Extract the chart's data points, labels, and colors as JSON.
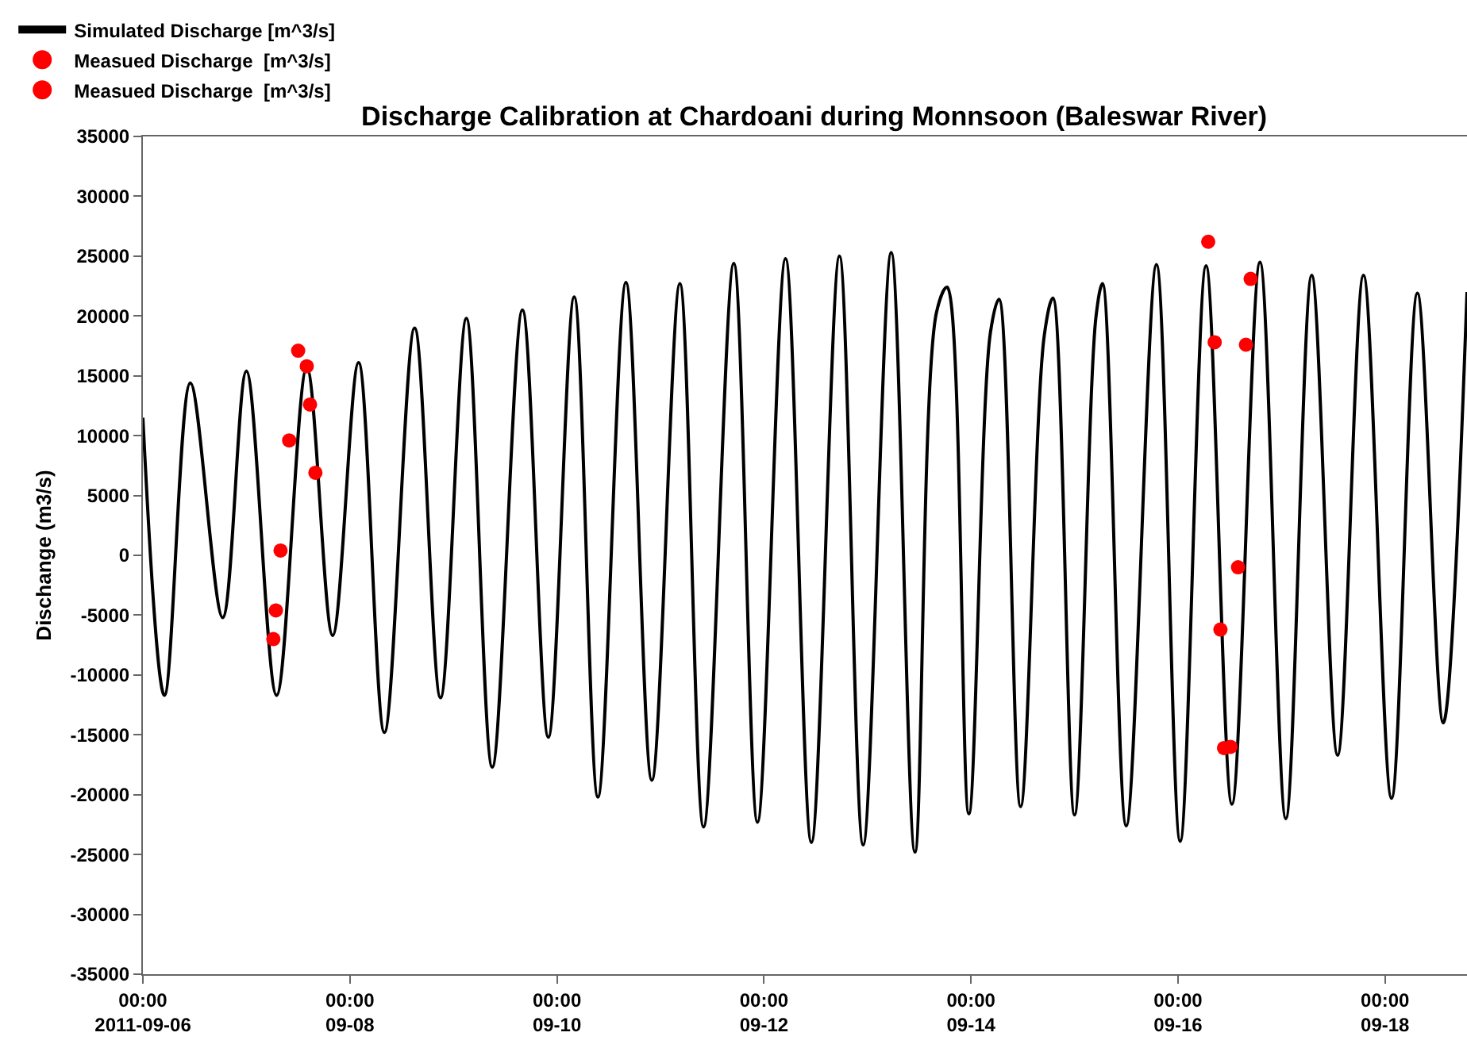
{
  "chart_data": {
    "type": "line",
    "title": "Discharge Calibration at Chardoani during Monnsoon (Baleswar River)",
    "ylabel": "Dischange (m3/s)",
    "xlim": [
      "2011-09-06T00:00",
      "2011-09-18T19:00"
    ],
    "xticks": [
      {
        "value": "2011-09-06T00:00",
        "label": "00:00\n2011-09-06"
      },
      {
        "value": "2011-09-08T00:00",
        "label": "00:00\n09-08"
      },
      {
        "value": "2011-09-10T00:00",
        "label": "00:00\n09-10"
      },
      {
        "value": "2011-09-12T00:00",
        "label": "00:00\n09-12"
      },
      {
        "value": "2011-09-14T00:00",
        "label": "00:00\n09-14"
      },
      {
        "value": "2011-09-16T00:00",
        "label": "00:00\n09-16"
      },
      {
        "value": "2011-09-18T00:00",
        "label": "00:00\n09-18"
      }
    ],
    "ylim": [
      -35000,
      35000
    ],
    "yticks": [
      -35000,
      -30000,
      -25000,
      -20000,
      -15000,
      -10000,
      -5000,
      0,
      5000,
      10000,
      15000,
      20000,
      25000,
      30000,
      35000
    ],
    "legend": "top left",
    "series": [
      {
        "name": "Simulated Discharge [m^3/s]",
        "color": "#000000",
        "marker": "none",
        "x": [
          "2011-09-06T00:00",
          "2011-09-06T05:00",
          "2011-09-06T11:00",
          "2011-09-06T18:30",
          "2011-09-07T00:00",
          "2011-09-07T07:00",
          "2011-09-07T14:00",
          "2011-09-07T20:00",
          "2011-09-08T02:00",
          "2011-09-08T08:00",
          "2011-09-08T15:00",
          "2011-09-08T21:00",
          "2011-09-09T03:00",
          "2011-09-09T09:00",
          "2011-09-09T16:00",
          "2011-09-09T22:00",
          "2011-09-10T04:00",
          "2011-09-10T09:30",
          "2011-09-10T16:00",
          "2011-09-10T22:00",
          "2011-09-11T04:30",
          "2011-09-11T10:00",
          "2011-09-11T17:00",
          "2011-09-11T22:30",
          "2011-09-12T05:00",
          "2011-09-12T11:00",
          "2011-09-12T17:30",
          "2011-09-12T23:00",
          "2011-09-13T05:30",
          "2011-09-13T11:00",
          "2011-09-13T16:00",
          "2011-09-13T18:30",
          "2011-09-13T23:30",
          "2011-09-14T04:30",
          "2011-09-14T06:30",
          "2011-09-14T11:30",
          "2011-09-14T17:00",
          "2011-09-14T19:00",
          "2011-09-15T00:00",
          "2011-09-15T05:00",
          "2011-09-15T06:30",
          "2011-09-15T12:00",
          "2011-09-15T19:00",
          "2011-09-16T00:30",
          "2011-09-16T06:30",
          "2011-09-16T12:30",
          "2011-09-16T19:00",
          "2011-09-17T01:00",
          "2011-09-17T07:00",
          "2011-09-17T13:00",
          "2011-09-17T19:00",
          "2011-09-18T01:30",
          "2011-09-18T07:30",
          "2011-09-18T13:30",
          "2011-09-18T19:00"
        ],
        "values": [
          11500,
          -11700,
          14400,
          -5200,
          15400,
          -11700,
          15700,
          -6700,
          16100,
          -14800,
          19000,
          -11900,
          19800,
          -17700,
          20500,
          -15200,
          21600,
          -20200,
          22800,
          -18800,
          22700,
          -22700,
          24400,
          -22300,
          24800,
          -24000,
          25000,
          -24200,
          25300,
          -24800,
          20300,
          22400,
          -21600,
          18600,
          21400,
          -21000,
          18400,
          21500,
          -21700,
          20000,
          22700,
          -22600,
          24300,
          -23900,
          24200,
          -20800,
          24500,
          -22000,
          23400,
          -16700,
          23400,
          -20300,
          21900,
          -14000,
          22000
        ]
      },
      {
        "name": "Measued Discharge  [m^3/s]",
        "type": "scatter",
        "color": "#ff0000",
        "marker": "circle",
        "x": [
          "2011-09-07T06:15",
          "2011-09-07T06:50",
          "2011-09-07T07:55",
          "2011-09-07T09:55",
          "2011-09-07T12:00",
          "2011-09-07T14:00",
          "2011-09-07T14:45",
          "2011-09-07T16:00"
        ],
        "values": [
          -7000,
          -4600,
          400,
          9600,
          17100,
          15800,
          12600,
          6900
        ]
      },
      {
        "name": "Measued Discharge  [m^3/s]",
        "type": "scatter",
        "color": "#ff0000",
        "marker": "circle",
        "x": [
          "2011-09-16T07:00",
          "2011-09-16T08:30",
          "2011-09-16T09:50",
          "2011-09-16T10:40",
          "2011-09-16T12:10",
          "2011-09-16T13:55",
          "2011-09-16T15:45",
          "2011-09-16T16:50"
        ],
        "values": [
          26200,
          17800,
          -6200,
          -16100,
          -16000,
          -1000,
          17600,
          23100
        ]
      }
    ]
  }
}
